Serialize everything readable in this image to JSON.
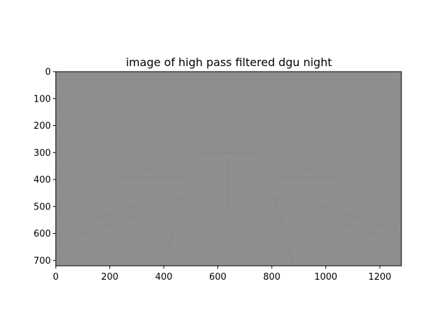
{
  "chart_data": {
    "type": "heatmap",
    "title": "image of high pass filtered dgu night",
    "xlabel": "",
    "ylabel": "",
    "xlim": [
      0,
      1280
    ],
    "ylim": [
      720,
      0
    ],
    "x_ticks": [
      0,
      200,
      400,
      600,
      800,
      1000,
      1200
    ],
    "y_ticks": [
      0,
      100,
      200,
      300,
      400,
      500,
      600,
      700
    ],
    "grid": false,
    "colormap": "gray",
    "base_color": "#8e8e8e",
    "edge_color": "#7a7a7a",
    "description_of_content": ""
  }
}
